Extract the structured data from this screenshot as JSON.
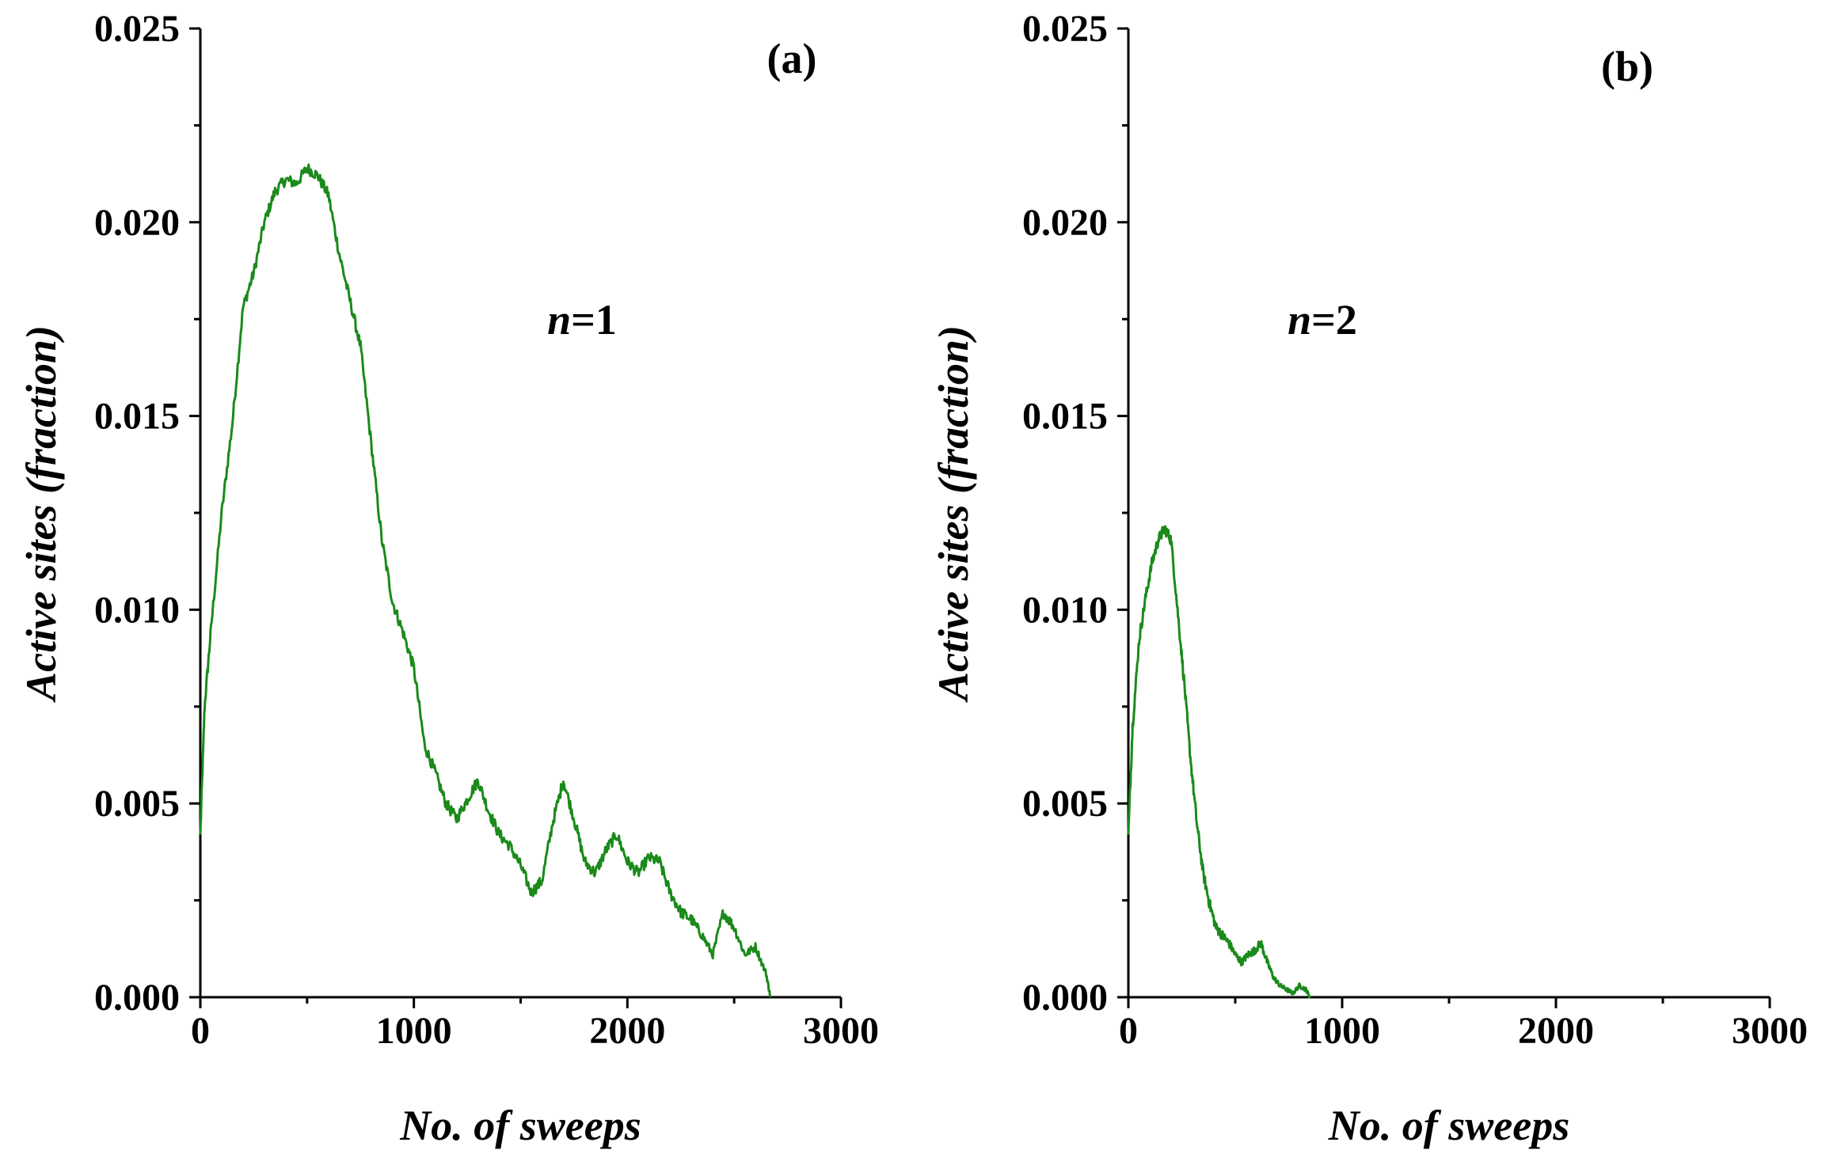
{
  "chart_data": [
    {
      "type": "line",
      "panel_label": "(a)",
      "annotation": {
        "var": "n",
        "eq": "=1"
      },
      "xlabel": "No. of sweeps",
      "ylabel": "Active sites (fraction)",
      "xlim": [
        0,
        3000
      ],
      "ylim": [
        0,
        0.025
      ],
      "xticks": [
        "0",
        "1000",
        "2000",
        "3000"
      ],
      "yticks": [
        "0.000",
        "0.005",
        "0.010",
        "0.015",
        "0.020",
        "0.025"
      ],
      "color": "#1a8a1a",
      "series": [
        {
          "name": "n=1",
          "x": [
            0,
            20,
            50,
            100,
            150,
            200,
            250,
            300,
            350,
            400,
            450,
            500,
            550,
            600,
            650,
            700,
            750,
            800,
            850,
            900,
            950,
            1000,
            1050,
            1100,
            1150,
            1200,
            1250,
            1300,
            1350,
            1400,
            1450,
            1500,
            1550,
            1600,
            1650,
            1700,
            1750,
            1800,
            1850,
            1900,
            1950,
            2000,
            2050,
            2100,
            2150,
            2200,
            2250,
            2300,
            2350,
            2400,
            2450,
            2500,
            2550,
            2600,
            2650,
            2670
          ],
          "y": [
            0.0042,
            0.0075,
            0.0095,
            0.0125,
            0.0148,
            0.0178,
            0.0187,
            0.02,
            0.0208,
            0.0211,
            0.021,
            0.0214,
            0.0212,
            0.0207,
            0.0192,
            0.018,
            0.0168,
            0.0143,
            0.0118,
            0.0102,
            0.0094,
            0.0085,
            0.0065,
            0.0058,
            0.005,
            0.0046,
            0.0051,
            0.0056,
            0.0048,
            0.0042,
            0.0039,
            0.0034,
            0.0027,
            0.003,
            0.0045,
            0.0056,
            0.0046,
            0.0035,
            0.0032,
            0.0038,
            0.0042,
            0.0035,
            0.0032,
            0.0036,
            0.0035,
            0.0027,
            0.0022,
            0.002,
            0.0016,
            0.0011,
            0.0022,
            0.0018,
            0.0011,
            0.0013,
            0.0006,
            0.0
          ]
        }
      ]
    },
    {
      "type": "line",
      "panel_label": "(b)",
      "annotation": {
        "var": "n",
        "eq": "=2"
      },
      "xlabel": "No. of sweeps",
      "ylabel": "Active sites (fraction)",
      "xlim": [
        0,
        3000
      ],
      "ylim": [
        0,
        0.025
      ],
      "xticks": [
        "0",
        "1000",
        "2000",
        "3000"
      ],
      "yticks": [
        "0.000",
        "0.005",
        "0.010",
        "0.015",
        "0.020",
        "0.025"
      ],
      "color": "#1a8a1a",
      "series": [
        {
          "name": "n=2",
          "x": [
            0,
            20,
            50,
            80,
            110,
            140,
            170,
            200,
            230,
            260,
            290,
            320,
            350,
            380,
            410,
            440,
            470,
            500,
            530,
            560,
            590,
            620,
            650,
            680,
            710,
            740,
            770,
            800,
            830,
            850
          ],
          "y": [
            0.0042,
            0.007,
            0.0092,
            0.0103,
            0.0112,
            0.0118,
            0.0121,
            0.0118,
            0.01,
            0.0082,
            0.0062,
            0.0045,
            0.0032,
            0.0024,
            0.0018,
            0.0016,
            0.0014,
            0.0011,
            0.0009,
            0.0011,
            0.0012,
            0.0014,
            0.0009,
            0.0005,
            0.0003,
            0.0002,
            0.0001,
            0.0003,
            0.0002,
            0.0
          ]
        }
      ]
    }
  ]
}
